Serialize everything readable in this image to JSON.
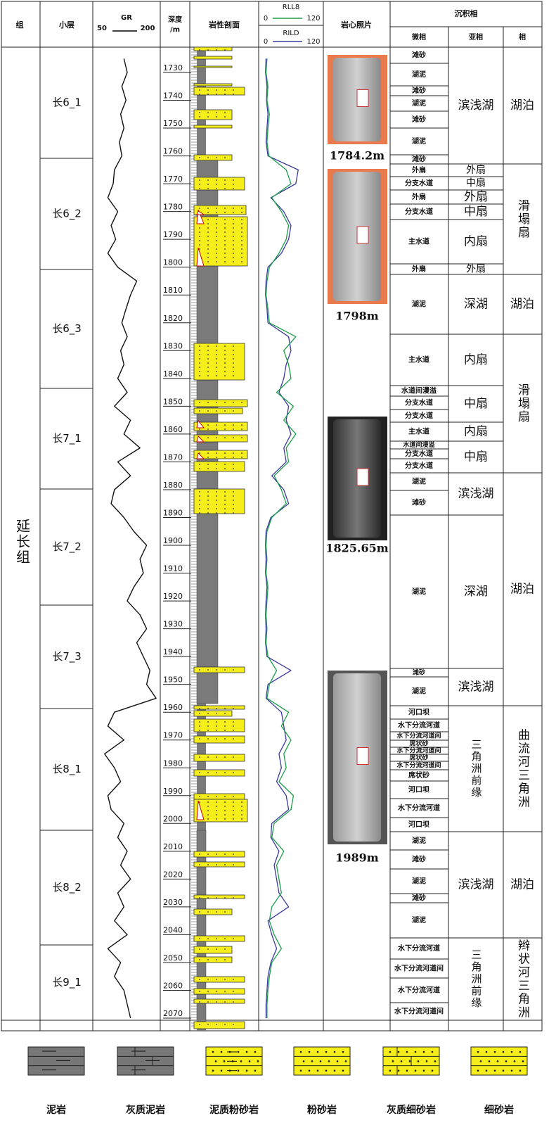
{
  "header": {
    "group": "组",
    "layer": "小层",
    "gr_title": "GR",
    "gr_min": 50,
    "gr_max": 200,
    "depth_title": "深度",
    "depth_unit": "/m",
    "lithology": "岩性剖面",
    "rll8": "RLL8",
    "rild": "RILD",
    "res_min": 0,
    "res_max": 120,
    "photos": "岩心照片",
    "facies_title": "沉积相",
    "micro": "微相",
    "sub": "亚相",
    "facies": "相"
  },
  "group_name": "延长组",
  "layers": [
    "长6_1",
    "长6_2",
    "长6_3",
    "长7_1",
    "长7_2",
    "长7_3",
    "长8_1",
    "长8_2",
    "长9_1"
  ],
  "depth_ticks": [
    1730,
    1740,
    1750,
    1760,
    1770,
    1780,
    1790,
    1800,
    1810,
    1820,
    1830,
    1840,
    1850,
    1860,
    1870,
    1880,
    1890,
    1900,
    1910,
    1920,
    1930,
    1940,
    1950,
    1960,
    1970,
    1980,
    1990,
    2000,
    2010,
    2020,
    2030,
    2040,
    2050,
    2060,
    2070
  ],
  "curves": {
    "depths": [
      1725,
      1730,
      1735,
      1740,
      1745,
      1750,
      1755,
      1760,
      1765,
      1770,
      1775,
      1780,
      1785,
      1790,
      1795,
      1800,
      1805,
      1810,
      1815,
      1820,
      1825,
      1830,
      1835,
      1840,
      1845,
      1850,
      1855,
      1860,
      1865,
      1870,
      1875,
      1880,
      1885,
      1890,
      1895,
      1900,
      1905,
      1910,
      1915,
      1920,
      1925,
      1930,
      1935,
      1940,
      1945,
      1950,
      1955,
      1960,
      1965,
      1970,
      1975,
      1980,
      1985,
      1990,
      1995,
      2000,
      2005,
      2010,
      2015,
      2020,
      2025,
      2030,
      2035,
      2040,
      2045,
      2050,
      2055,
      2060,
      2065,
      2070
    ],
    "gr": [
      117,
      125,
      112,
      122,
      109,
      117,
      106,
      112,
      94,
      91,
      78,
      102,
      86,
      97,
      78,
      102,
      148,
      133,
      122,
      112,
      125,
      109,
      117,
      102,
      125,
      94,
      133,
      117,
      156,
      102,
      133,
      94,
      86,
      117,
      141,
      172,
      156,
      164,
      141,
      125,
      156,
      172,
      148,
      164,
      180,
      172,
      195,
      94,
      78,
      117,
      70,
      94,
      109,
      78,
      86,
      117,
      102,
      125,
      109,
      133,
      102,
      117,
      94,
      125,
      78,
      109,
      94,
      117,
      125,
      133
    ],
    "rll8": [
      10,
      8,
      12,
      10,
      15,
      12,
      10,
      14,
      50,
      60,
      20,
      40,
      55,
      50,
      35,
      15,
      10,
      8,
      12,
      15,
      70,
      45,
      55,
      60,
      30,
      65,
      45,
      70,
      50,
      55,
      25,
      40,
      50,
      20,
      10,
      8,
      10,
      8,
      12,
      10,
      8,
      10,
      8,
      12,
      30,
      15,
      10,
      55,
      40,
      60,
      45,
      50,
      35,
      65,
      60,
      25,
      20,
      45,
      30,
      35,
      40,
      20,
      15,
      25,
      40,
      20,
      15,
      12,
      10,
      10
    ],
    "rild": [
      8,
      7,
      10,
      9,
      12,
      10,
      8,
      12,
      75,
      70,
      18,
      45,
      60,
      55,
      40,
      12,
      8,
      7,
      10,
      12,
      55,
      60,
      50,
      45,
      35,
      55,
      50,
      60,
      45,
      50,
      20,
      45,
      55,
      18,
      8,
      7,
      8,
      7,
      10,
      8,
      7,
      8,
      7,
      10,
      60,
      12,
      8,
      40,
      45,
      50,
      35,
      40,
      30,
      50,
      55,
      20,
      18,
      35,
      25,
      30,
      35,
      55,
      12,
      20,
      30,
      18,
      12,
      10,
      8,
      8
    ]
  },
  "photos": [
    "1784.2m",
    "1798m",
    "1825.65m",
    "1989m"
  ],
  "micro_facies": [
    "滩砂",
    "湖泥",
    "滩砂",
    "湖泥",
    "滩砂",
    "湖泥",
    "滩砂",
    "外扇",
    "分支水道",
    "外扇",
    "分支水道",
    "主水道",
    "外扇",
    "湖泥",
    "主水道",
    "水道间漫溢",
    "分支水道",
    "分支水道",
    "主水道",
    "水道间漫溢",
    "分支水道",
    "分支水道",
    "湖泥",
    "滩砂",
    "湖泥",
    "滩砂",
    "湖泥",
    "河口坝",
    "水下分流河道",
    "水下分流河道间",
    "席状砂",
    "水下分流河道间",
    "席状砂",
    "水下分流河道间",
    "席状砂",
    "河口坝",
    "水下分流河道",
    "河口坝",
    "湖泥",
    "滩砂",
    "湖泥",
    "滩砂",
    "湖泥",
    "水下分流河道",
    "水下分流河道间",
    "水下分流河道",
    "水下分流河道间"
  ],
  "sub_facies": [
    "滨浅湖",
    "外扇",
    "中扇",
    "外扇",
    "中扇",
    "内扇",
    "外扇",
    "深湖",
    "内扇",
    "中扇",
    "内扇",
    "中扇",
    "滨浅湖",
    "深湖",
    "滨浅湖",
    "三角洲前缘",
    "滨浅湖",
    "三角洲前缘"
  ],
  "facies": [
    "湖泊",
    "滑塌扇",
    "湖泊",
    "滑塌扇",
    "湖泊",
    "曲流河三角洲",
    "湖泊",
    "辫状河三角洲"
  ],
  "legend": [
    "泥岩",
    "灰质泥岩",
    "泥质粉砂岩",
    "粉砂岩",
    "灰质细砂岩",
    "细砂岩"
  ]
}
